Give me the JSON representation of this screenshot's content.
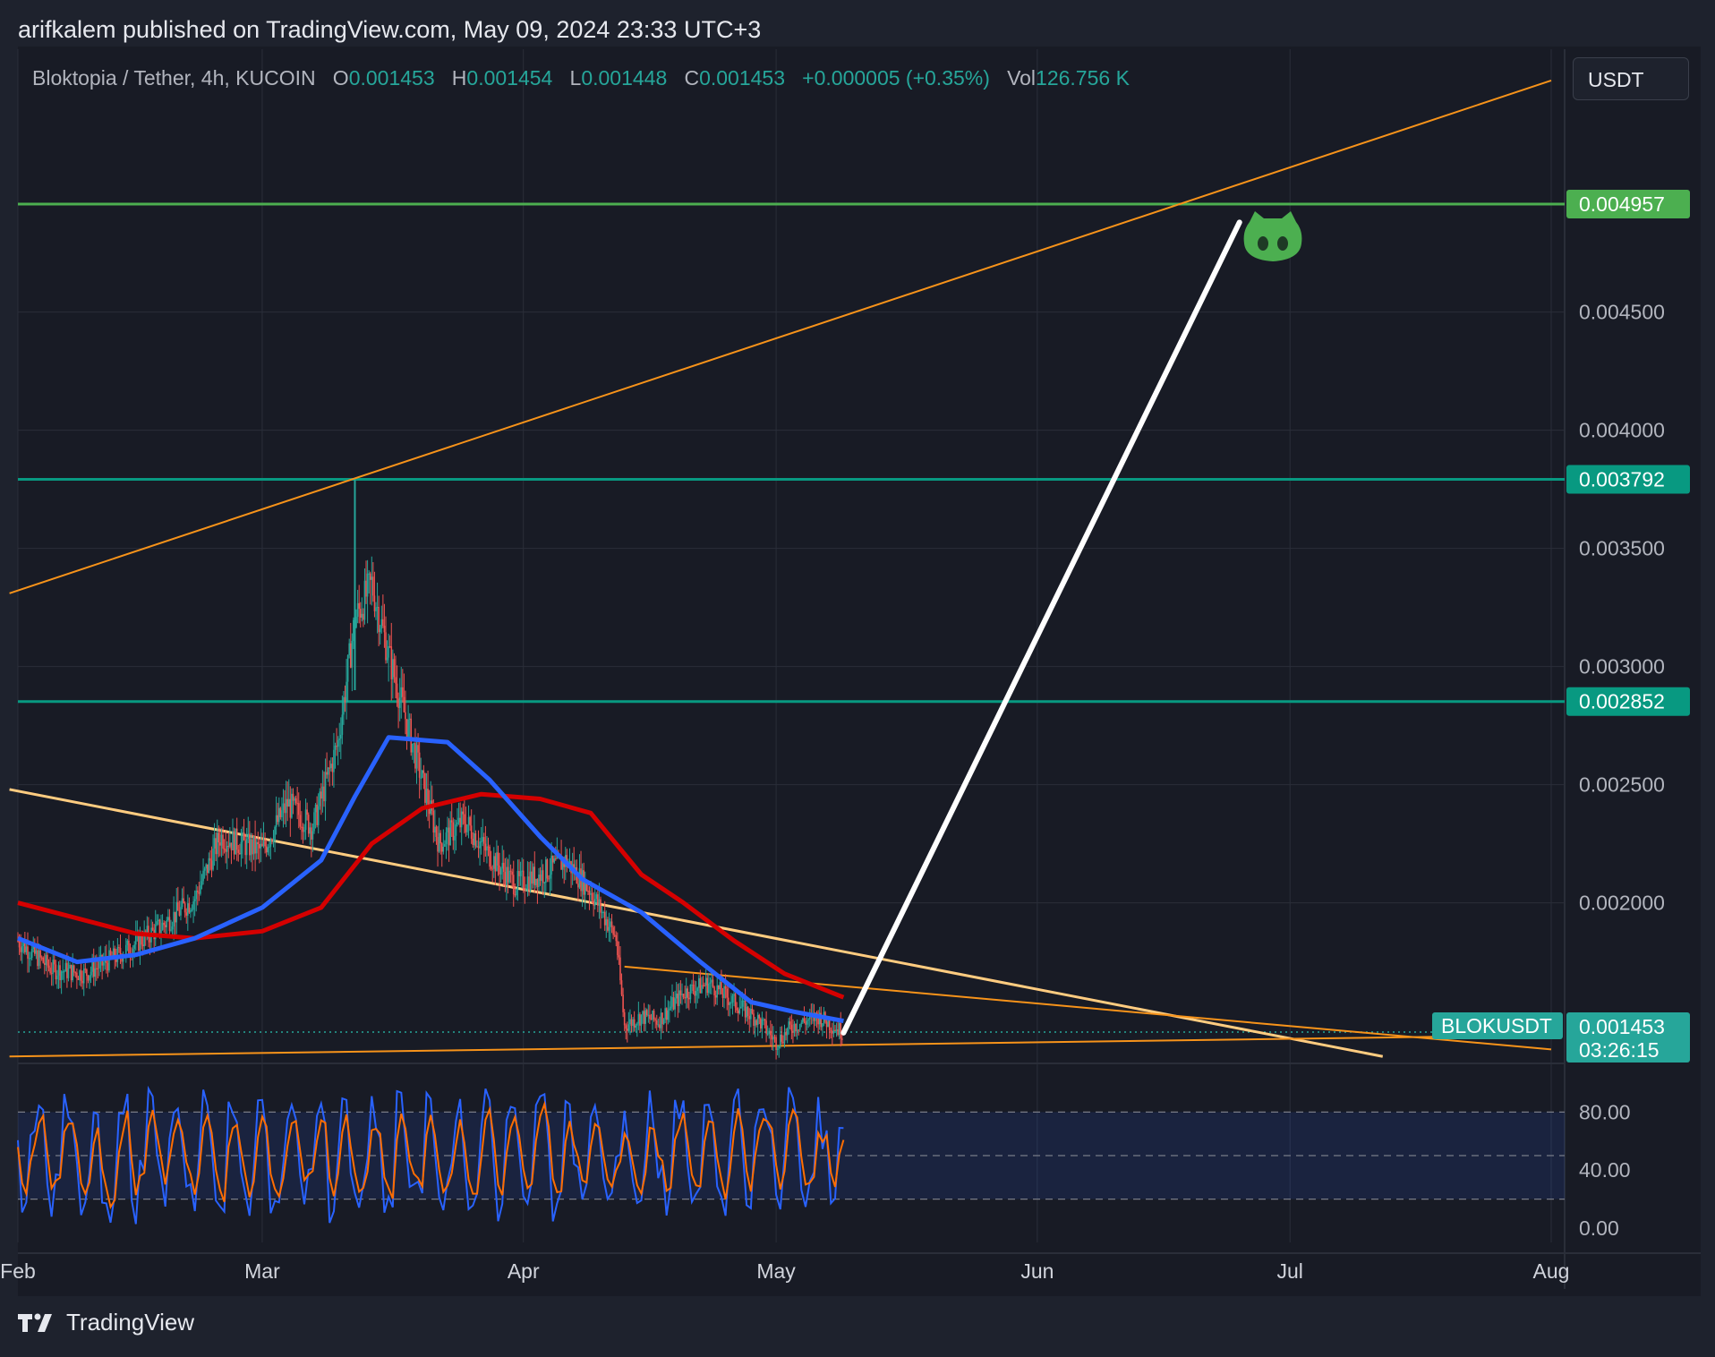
{
  "header": {
    "text": "arifkalem published on TradingView.com, May 09, 2024 23:33 UTC+3"
  },
  "legend": {
    "symbol": "Bloktopia / Tether, 4h, KUCOIN",
    "o_label": "O",
    "o": "0.001453",
    "h_label": "H",
    "h": "0.001454",
    "l_label": "L",
    "l": "0.001448",
    "c_label": "C",
    "c": "0.001453",
    "change": "+0.000005 (+0.35%)",
    "vol_label": "Vol",
    "vol": "126.756 K"
  },
  "currency_button": "USDT",
  "footer": {
    "brand": "TradingView"
  },
  "colors": {
    "background": "#181b25",
    "grid": "#2a2e39",
    "up": "#26a69a",
    "down": "#ef5350",
    "ma_red": "#d50000",
    "ma_blue": "#2962ff",
    "trend_orange": "#f7931a",
    "trend_light": "#ffcc80",
    "green_level": "#4caf50",
    "teal_level": "#089981",
    "arrow": "#ffffff",
    "stoch_k": "#2962ff",
    "stoch_d": "#ff6d00"
  },
  "chart_data": {
    "type": "candlestick",
    "symbol": "BLOKUSDT",
    "timeframe": "4h",
    "exchange": "KUCOIN",
    "x_ticks": [
      "Feb",
      "Mar",
      "Apr",
      "May",
      "Jun",
      "Jul",
      "Aug"
    ],
    "y_ticks": [
      "0.002000",
      "0.002500",
      "0.003000",
      "0.003500",
      "0.004000",
      "0.004500"
    ],
    "ylim": [
      0.00135,
      0.0057
    ],
    "price_levels": [
      {
        "label": "0.004957",
        "value": 0.004957,
        "color": "#4caf50"
      },
      {
        "label": "0.003792",
        "value": 0.003792,
        "color": "#089981"
      },
      {
        "label": "0.002852",
        "value": 0.002852,
        "color": "#089981"
      }
    ],
    "last_price": {
      "symbol_tag": "BLOKUSDT",
      "price": "0.001453",
      "countdown": "03:26:15",
      "value": 0.001453
    },
    "price_path": [
      [
        "Feb 1",
        0.00184
      ],
      [
        "Feb 5",
        0.00172
      ],
      [
        "Feb 9",
        0.0017
      ],
      [
        "Feb 13",
        0.00178
      ],
      [
        "Feb 18",
        0.0019
      ],
      [
        "Feb 22",
        0.00202
      ],
      [
        "Feb 25",
        0.00228
      ],
      [
        "Mar 1",
        0.00222
      ],
      [
        "Mar 4",
        0.00242
      ],
      [
        "Mar 7",
        0.00232
      ],
      [
        "Mar 10",
        0.00268
      ],
      [
        "Mar 12",
        0.0032
      ],
      [
        "Mar 14",
        0.00335
      ],
      [
        "Mar 16",
        0.00305
      ],
      [
        "Mar 19",
        0.00265
      ],
      [
        "Mar 22",
        0.00225
      ],
      [
        "Mar 25",
        0.00235
      ],
      [
        "Mar 28",
        0.0022
      ],
      [
        "Mar 31",
        0.00208
      ],
      [
        "Apr 3",
        0.00212
      ],
      [
        "Apr 6",
        0.00218
      ],
      [
        "Apr 9",
        0.00205
      ],
      [
        "Apr 12",
        0.00185
      ],
      [
        "Apr 13",
        0.00148
      ],
      [
        "Apr 15",
        0.00152
      ],
      [
        "Apr 17",
        0.0015
      ],
      [
        "Apr 20",
        0.00162
      ],
      [
        "Apr 23",
        0.00166
      ],
      [
        "Apr 26",
        0.00158
      ],
      [
        "Apr 29",
        0.0015
      ],
      [
        "May 1",
        0.00141
      ],
      [
        "May 3",
        0.00148
      ],
      [
        "May 6",
        0.00152
      ],
      [
        "May 9",
        0.00145
      ]
    ],
    "moving_averages": [
      {
        "color": "#d50000",
        "points": [
          [
            "Feb 1",
            0.002
          ],
          [
            "Feb 15",
            0.00187
          ],
          [
            "Feb 22",
            0.00185
          ],
          [
            "Mar 1",
            0.00188
          ],
          [
            "Mar 8",
            0.00198
          ],
          [
            "Mar 14",
            0.00225
          ],
          [
            "Mar 20",
            0.0024
          ],
          [
            "Mar 27",
            0.00246
          ],
          [
            "Apr 3",
            0.00244
          ],
          [
            "Apr 9",
            0.00238
          ],
          [
            "Apr 15",
            0.00212
          ],
          [
            "Apr 20",
            0.002
          ],
          [
            "Apr 26",
            0.00184
          ],
          [
            "May 2",
            0.0017
          ],
          [
            "May 9",
            0.0016
          ]
        ]
      },
      {
        "color": "#2962ff",
        "points": [
          [
            "Feb 1",
            0.00185
          ],
          [
            "Feb 8",
            0.00175
          ],
          [
            "Feb 15",
            0.00178
          ],
          [
            "Feb 22",
            0.00185
          ],
          [
            "Mar 1",
            0.00198
          ],
          [
            "Mar 8",
            0.00218
          ],
          [
            "Mar 12",
            0.00245
          ],
          [
            "Mar 16",
            0.0027
          ],
          [
            "Mar 23",
            0.00268
          ],
          [
            "Mar 28",
            0.00252
          ],
          [
            "Apr 3",
            0.00228
          ],
          [
            "Apr 8",
            0.0021
          ],
          [
            "Apr 15",
            0.00196
          ],
          [
            "Apr 22",
            0.00175
          ],
          [
            "Apr 28",
            0.00158
          ],
          [
            "May 3",
            0.00154
          ],
          [
            "May 9",
            0.0015
          ]
        ]
      }
    ],
    "trendlines": [
      {
        "color": "#f7931a",
        "from": [
          "Jan 31",
          0.00331
        ],
        "to": [
          "Aug 1",
          0.00548
        ]
      },
      {
        "color": "#ffcc80",
        "from": [
          "Jan 31",
          0.00248
        ],
        "to": [
          "Jul 12",
          0.00135
        ]
      },
      {
        "color": "#f7931a",
        "from": [
          "Jan 31",
          0.00135
        ],
        "to": [
          "Aug 1",
          0.00144
        ]
      },
      {
        "color": "#f7931a",
        "from": [
          "Apr 13",
          0.00173
        ],
        "to": [
          "Aug 1",
          0.00138
        ]
      }
    ],
    "projection_arrow": {
      "from": [
        "May 9",
        0.00145
      ],
      "to": [
        "Jun 25",
        0.00488
      ]
    },
    "oscillator": {
      "type": "stochastic",
      "y_ticks": [
        "80.00",
        "40.00",
        "0.00"
      ],
      "bands": [
        20,
        50,
        80
      ],
      "ylim": [
        0,
        100
      ]
    }
  }
}
